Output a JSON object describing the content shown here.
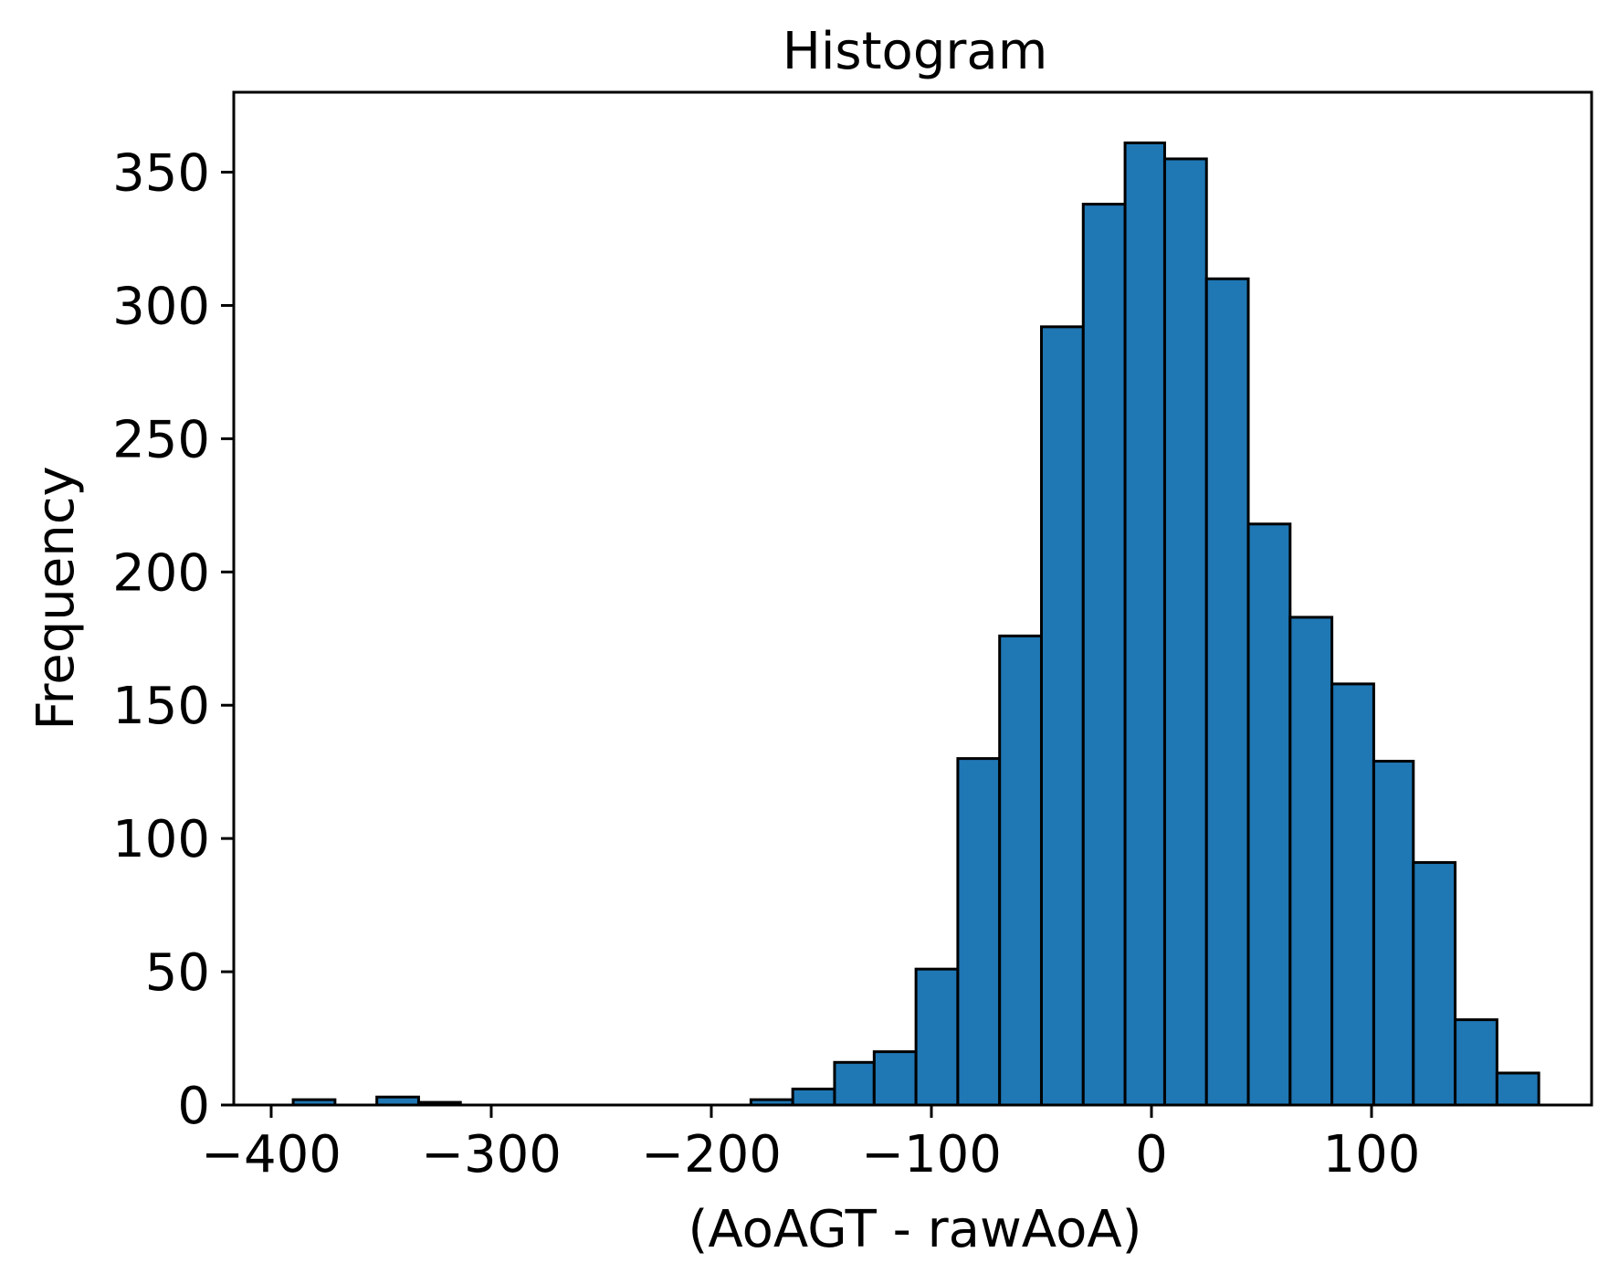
{
  "chart_data": {
    "type": "bar",
    "title": "Histogram",
    "xlabel": "(AoAGT - rawAoA)",
    "ylabel": "Frequency",
    "xlim": [
      -417,
      200
    ],
    "ylim": [
      0,
      380
    ],
    "xticks": [
      -400,
      -300,
      -200,
      -100,
      0,
      100
    ],
    "yticks": [
      0,
      50,
      100,
      150,
      200,
      250,
      300,
      350
    ],
    "grid": false,
    "bar_color": "#1f77b4",
    "edge_color": "#000000",
    "bins": [
      {
        "x0": -390,
        "x1": -371,
        "value": 2
      },
      {
        "x0": -371,
        "x1": -352,
        "value": 0
      },
      {
        "x0": -352,
        "x1": -333,
        "value": 3
      },
      {
        "x0": -333,
        "x1": -314,
        "value": 1
      },
      {
        "x0": -314,
        "x1": -295,
        "value": 0
      },
      {
        "x0": -295,
        "x1": -276,
        "value": 0
      },
      {
        "x0": -276,
        "x1": -258,
        "value": 0
      },
      {
        "x0": -258,
        "x1": -239,
        "value": 0
      },
      {
        "x0": -239,
        "x1": -220,
        "value": 0
      },
      {
        "x0": -220,
        "x1": -201,
        "value": 0
      },
      {
        "x0": -201,
        "x1": -182,
        "value": 0
      },
      {
        "x0": -182,
        "x1": -163,
        "value": 2
      },
      {
        "x0": -163,
        "x1": -144,
        "value": 6
      },
      {
        "x0": -144,
        "x1": -126,
        "value": 16
      },
      {
        "x0": -126,
        "x1": -107,
        "value": 20
      },
      {
        "x0": -107,
        "x1": -88,
        "value": 51
      },
      {
        "x0": -88,
        "x1": -69,
        "value": 130
      },
      {
        "x0": -69,
        "x1": -50,
        "value": 176
      },
      {
        "x0": -50,
        "x1": -31,
        "value": 292
      },
      {
        "x0": -31,
        "x1": -12,
        "value": 338
      },
      {
        "x0": -12,
        "x1": 6,
        "value": 361
      },
      {
        "x0": 6,
        "x1": 25,
        "value": 355
      },
      {
        "x0": 25,
        "x1": 44,
        "value": 310
      },
      {
        "x0": 44,
        "x1": 63,
        "value": 218
      },
      {
        "x0": 63,
        "x1": 82,
        "value": 183
      },
      {
        "x0": 82,
        "x1": 101,
        "value": 158
      },
      {
        "x0": 101,
        "x1": 119,
        "value": 129
      },
      {
        "x0": 119,
        "x1": 138,
        "value": 91
      },
      {
        "x0": 138,
        "x1": 157,
        "value": 32
      },
      {
        "x0": 157,
        "x1": 176,
        "value": 12
      }
    ]
  }
}
